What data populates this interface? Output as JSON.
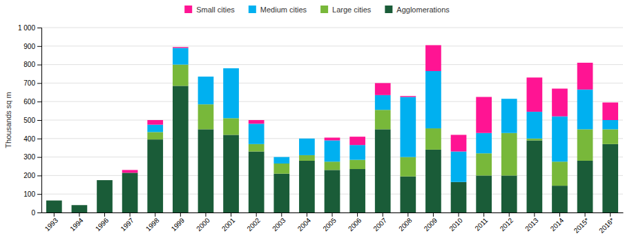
{
  "chart_data": {
    "type": "bar",
    "stacked": true,
    "categories": [
      "1993",
      "1994",
      "1996",
      "1997",
      "1998",
      "1999",
      "2000",
      "2001",
      "2002",
      "2003",
      "2004",
      "2005",
      "2006",
      "2007",
      "2008",
      "2009",
      "2010",
      "2011",
      "2012",
      "2013",
      "2014",
      "2015*",
      "2016*"
    ],
    "series": [
      {
        "name": "Agglomerations",
        "color": "#1a5c38",
        "values": [
          65,
          40,
          175,
          215,
          395,
          685,
          450,
          420,
          330,
          210,
          280,
          230,
          235,
          450,
          195,
          340,
          165,
          200,
          200,
          390,
          145,
          280,
          370
        ]
      },
      {
        "name": "Large cities",
        "color": "#78b83a",
        "values": [
          0,
          0,
          0,
          0,
          40,
          115,
          135,
          90,
          40,
          55,
          30,
          45,
          50,
          105,
          105,
          115,
          0,
          120,
          230,
          10,
          130,
          170,
          80
        ]
      },
      {
        "name": "Medium cities",
        "color": "#00b0f0",
        "values": [
          0,
          0,
          0,
          0,
          40,
          90,
          150,
          270,
          110,
          35,
          90,
          115,
          80,
          80,
          325,
          310,
          165,
          110,
          185,
          145,
          245,
          215,
          50
        ]
      },
      {
        "name": "Small cities",
        "color": "#ff1493",
        "values": [
          0,
          0,
          0,
          15,
          25,
          5,
          0,
          0,
          20,
          0,
          0,
          15,
          45,
          65,
          5,
          140,
          90,
          195,
          0,
          185,
          150,
          145,
          95
        ]
      }
    ],
    "y_label": "Thousands sq m",
    "ylim": [
      0,
      1000
    ],
    "yticks": [
      0,
      100,
      200,
      300,
      400,
      500,
      600,
      700,
      800,
      900,
      {
        "value": 1000,
        "label": "1 000"
      }
    ],
    "grid": true,
    "legend": "top"
  }
}
